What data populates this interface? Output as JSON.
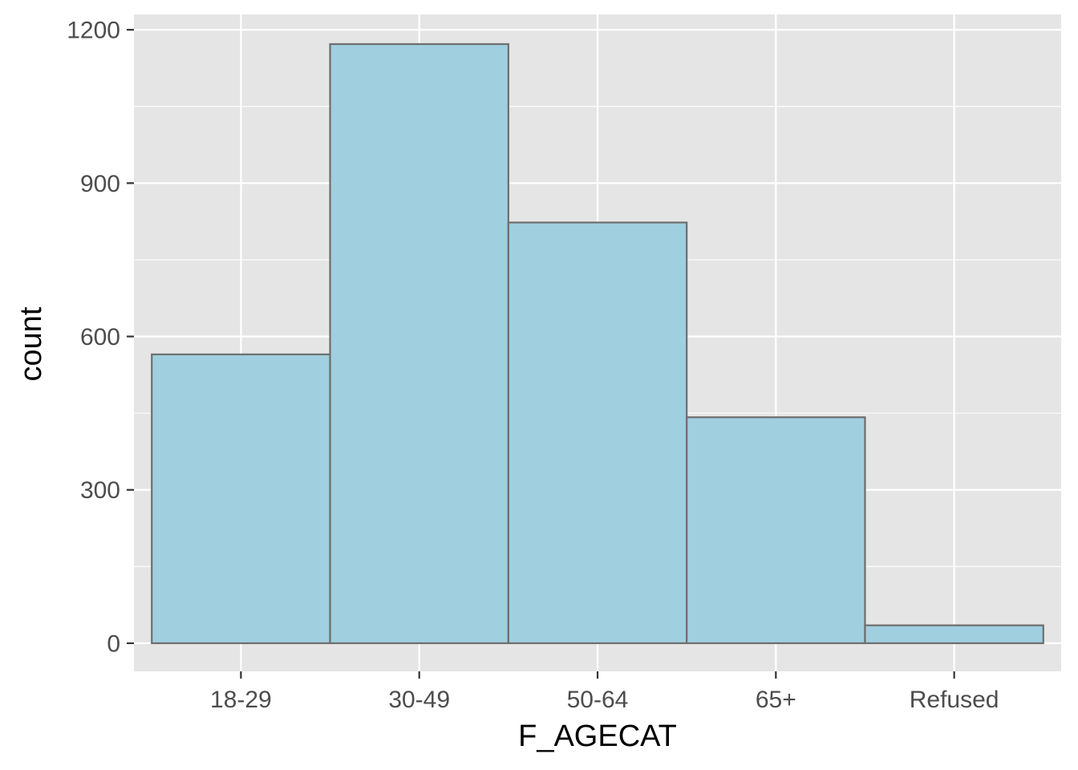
{
  "chart_data": {
    "type": "bar",
    "title": "",
    "xlabel": "F_AGECAT",
    "ylabel": "count",
    "categories": [
      "18-29",
      "30-49",
      "50-64",
      "65+",
      "Refused"
    ],
    "values": [
      565,
      1172,
      823,
      442,
      35
    ],
    "ylim": [
      -55,
      1230
    ],
    "y_ticks": [
      0,
      300,
      600,
      900,
      1200
    ],
    "grid": true,
    "legend": "none",
    "colors": {
      "panel_background": "#e5e5e5",
      "grid": "#ffffff",
      "bar_fill": "#a0cfdf",
      "bar_outline": "#6e6e6e",
      "tick_text": "#4d4d4d",
      "tick_mark": "#333333",
      "title_text": "#000000"
    }
  }
}
